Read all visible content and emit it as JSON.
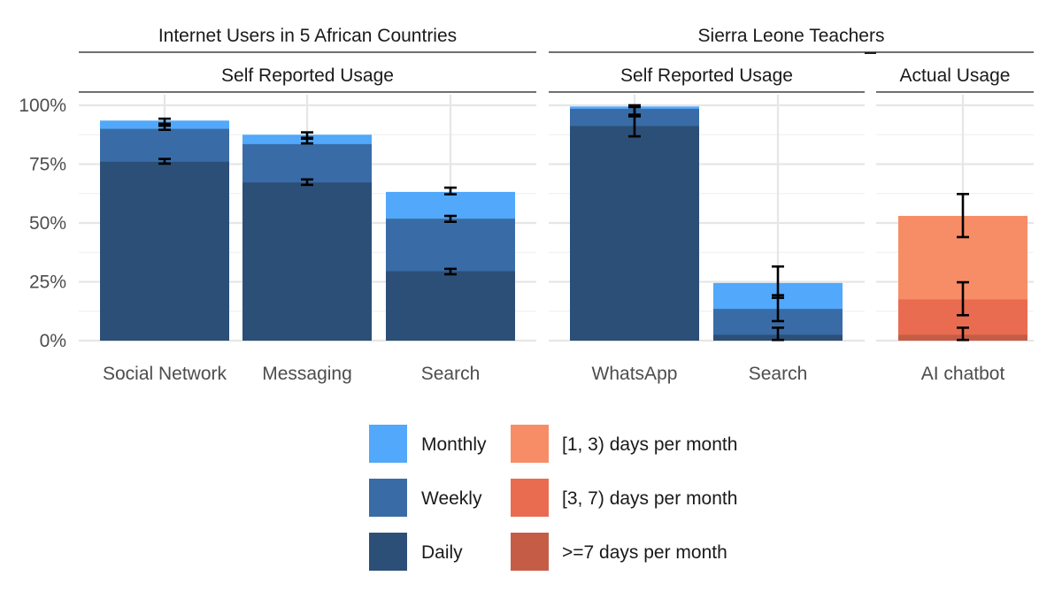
{
  "chart_data": {
    "type": "bar",
    "stacked": "overlapping-cumulative",
    "y_axis": {
      "range": [
        0,
        100
      ],
      "ticks": [
        0,
        25,
        50,
        75,
        100
      ],
      "tick_labels": [
        "0%",
        "25%",
        "50%",
        "75%",
        "100%"
      ]
    },
    "headers": [
      {
        "title": "Internet Users in 5 African Countries"
      },
      {
        "title": "Sierra Leone Teachers"
      }
    ],
    "panels": [
      {
        "group": 0,
        "strip": "Self Reported Usage",
        "palette": "blue",
        "categories": [
          {
            "label": "Social Network",
            "levels": [
              {
                "series": "Monthly",
                "value": 93.5,
                "err": [
                  92.2,
                  94.3
                ]
              },
              {
                "series": "Weekly",
                "value": 90,
                "err": [
                  89.6,
                  91.3
                ]
              },
              {
                "series": "Daily",
                "value": 76,
                "err": [
                  75.2,
                  77.2
                ]
              }
            ]
          },
          {
            "label": "Messaging",
            "levels": [
              {
                "series": "Monthly",
                "value": 87.5,
                "err": [
                  86.2,
                  88.5
                ]
              },
              {
                "series": "Weekly",
                "value": 83.5,
                "err": [
                  83.8,
                  85.8
                ]
              },
              {
                "series": "Daily",
                "value": 67.2,
                "err": [
                  66.2,
                  68.5
                ]
              }
            ]
          },
          {
            "label": "Search",
            "levels": [
              {
                "series": "Monthly",
                "value": 63.2,
                "err": [
                  62.2,
                  65
                ]
              },
              {
                "series": "Weekly",
                "value": 51.8,
                "err": [
                  50.5,
                  53
                ]
              },
              {
                "series": "Daily",
                "value": 29.5,
                "err": [
                  28.2,
                  30.5
                ]
              }
            ]
          }
        ]
      },
      {
        "group": 1,
        "strip": "Self Reported Usage",
        "palette": "blue",
        "categories": [
          {
            "label": "WhatsApp",
            "levels": [
              {
                "series": "Monthly",
                "value": 99.5,
                "err": [
                  96,
                  100
                ]
              },
              {
                "series": "Weekly",
                "value": 98.5,
                "err": [
                  95.3,
                  99.2
                ]
              },
              {
                "series": "Daily",
                "value": 91.2,
                "err": [
                  86.8,
                  95.6
                ]
              }
            ]
          },
          {
            "label": "Search",
            "levels": [
              {
                "series": "Monthly",
                "value": 24.5,
                "err": [
                  18.2,
                  31.5
                ]
              },
              {
                "series": "Weekly",
                "value": 13.5,
                "err": [
                  8.3,
                  19.3
                ]
              },
              {
                "series": "Daily",
                "value": 2.5,
                "err": [
                  0.3,
                  5.5
                ]
              }
            ]
          }
        ]
      },
      {
        "group": 1,
        "strip": "Actual Usage",
        "palette": "orange",
        "categories": [
          {
            "label": "AI chatbot",
            "levels": [
              {
                "series": "[1, 3) days per month",
                "value": 53,
                "err": [
                  44,
                  62.3
                ]
              },
              {
                "series": "[3, 7) days per month",
                "value": 17.5,
                "err": [
                  10.8,
                  24.8
                ]
              },
              {
                "series": ">=7 days per month",
                "value": 2.5,
                "err": [
                  0.3,
                  5.5
                ]
              }
            ]
          }
        ]
      }
    ],
    "colors": {
      "blue": [
        "#52a8fa",
        "#396ca6",
        "#2c4f78"
      ],
      "orange": [
        "#f78d66",
        "#e96c50",
        "#c55d46"
      ]
    },
    "legend": {
      "placement": "bottom",
      "columns": [
        [
          "Monthly",
          "Weekly",
          "Daily"
        ],
        [
          "[1, 3) days per month",
          "[3, 7) days per month",
          ">=7 days per month"
        ]
      ]
    }
  }
}
